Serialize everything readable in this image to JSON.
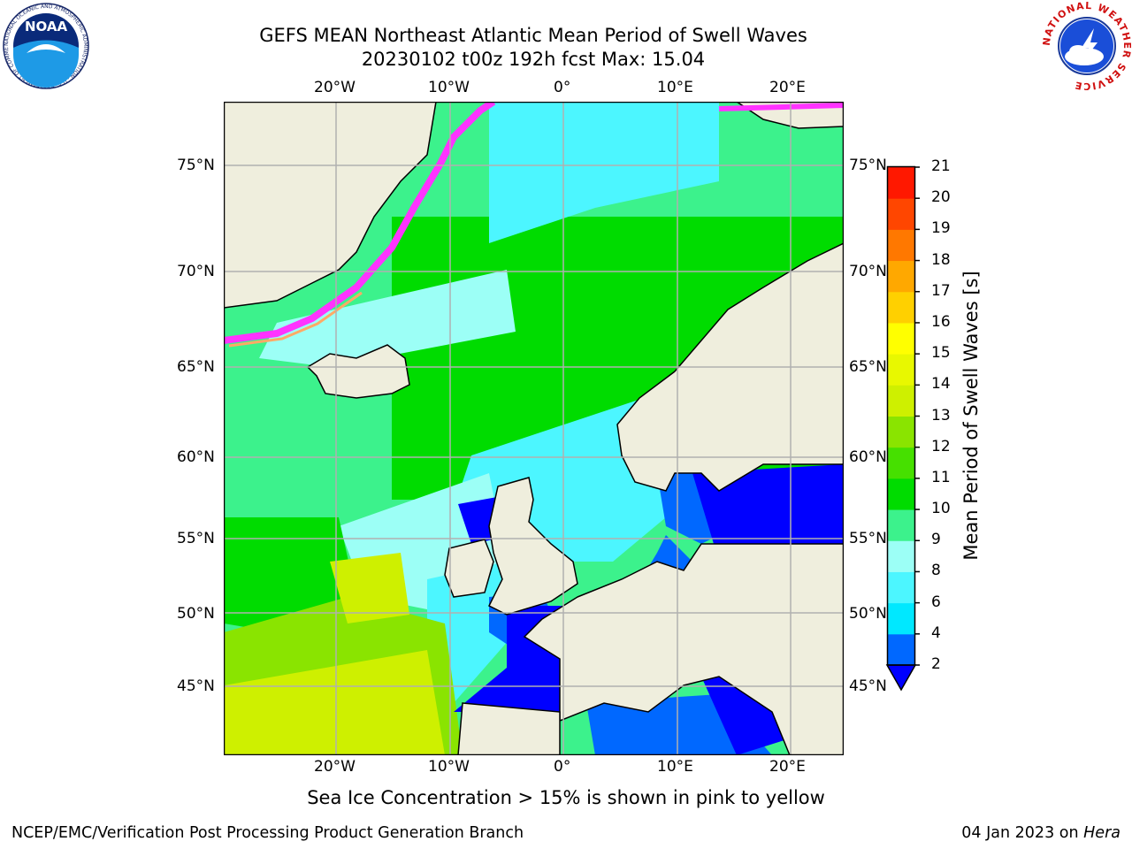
{
  "header": {
    "title_line1": "GEFS MEAN Northeast Atlantic Mean Period of Swell Waves",
    "title_line2": "20230102 t00z 192h fcst   Max: 15.04"
  },
  "logos": {
    "noaa_text": "NOAA",
    "noaa_ring": "NATIONAL OCEANIC AND ATMOSPHERIC ADMINISTRATION · U.S. DEPARTMENT OF COMMERCE",
    "nws_ring": "NATIONAL WEATHER SERVICE"
  },
  "map": {
    "lon_labels": [
      "20°W",
      "10°W",
      "0°",
      "10°E",
      "20°E"
    ],
    "lat_labels": [
      "75°N",
      "70°N",
      "65°N",
      "60°N",
      "55°N",
      "50°N",
      "45°N"
    ],
    "land_color": "#efeedd",
    "ice_colors": [
      "#ff33ff",
      "#ff66cc",
      "#ffaa66",
      "#ffee66"
    ]
  },
  "colorbar": {
    "label": "Mean Period of Swell Waves [s]",
    "ticks": [
      "2",
      "4",
      "6",
      "8",
      "9",
      "10",
      "11",
      "12",
      "13",
      "14",
      "15",
      "16",
      "17",
      "18",
      "19",
      "20",
      "21"
    ],
    "colors": [
      "#0068ff",
      "#00e8ff",
      "#4cf6ff",
      "#9cfff6",
      "#3cf28c",
      "#00dc00",
      "#46e000",
      "#8ae400",
      "#cef000",
      "#e8f800",
      "#ffff00",
      "#ffd000",
      "#ffa800",
      "#ff7800",
      "#ff4600",
      "#ff1800"
    ],
    "under_color": "#0000ff"
  },
  "note": "Sea Ice Concentration > 15% is shown in pink to yellow",
  "footer": {
    "left": "NCEP/EMC/Verification Post Processing Product Generation Branch",
    "date": "04 Jan 2023 on ",
    "host": "Hera"
  }
}
